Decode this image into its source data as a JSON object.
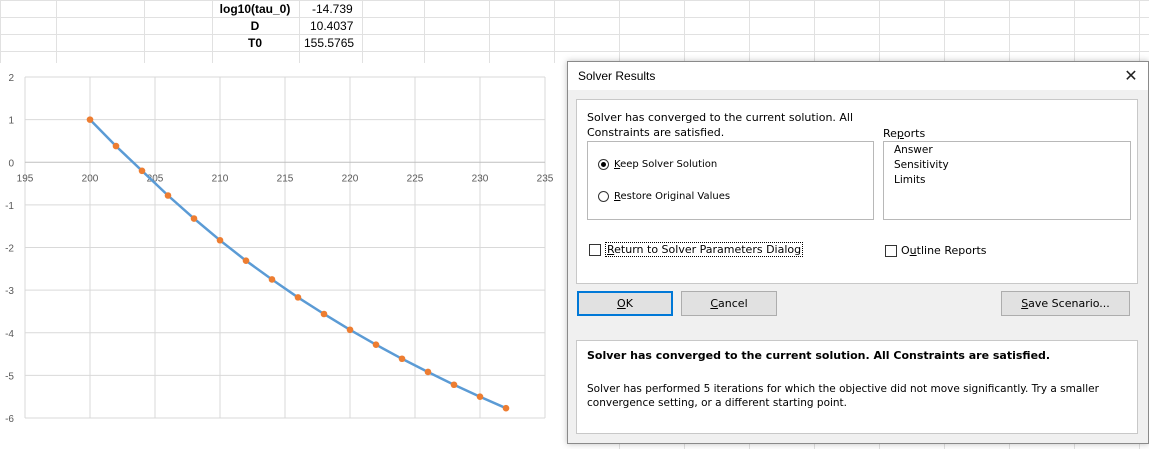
{
  "spreadsheet": {
    "rows": [
      {
        "label": "log10(tau_0)",
        "value": "-14.739"
      },
      {
        "label": "D",
        "value": "10.4037"
      },
      {
        "label": "T0",
        "value": "155.5765"
      }
    ]
  },
  "chart_data": {
    "type": "line",
    "x": [
      200,
      202,
      204,
      206,
      208,
      210,
      212,
      214,
      216,
      218,
      220,
      222,
      224,
      226,
      228,
      230,
      232
    ],
    "y": [
      1.0,
      0.38,
      -0.2,
      -0.78,
      -1.32,
      -1.83,
      -2.31,
      -2.75,
      -3.17,
      -3.56,
      -3.93,
      -4.28,
      -4.61,
      -4.92,
      -5.22,
      -5.5,
      -5.77
    ],
    "xlim": [
      195,
      235
    ],
    "ylim": [
      -6,
      2
    ],
    "x_ticks": [
      "195",
      "200",
      "205",
      "210",
      "215",
      "220",
      "225",
      "230",
      "235"
    ],
    "y_ticks": [
      "2",
      "1",
      "0",
      "-1",
      "-2",
      "-3",
      "-4",
      "-5",
      "-6"
    ],
    "grid": true,
    "line_color": "#5b9bd5",
    "marker_color": "#ed7d31"
  },
  "dialog": {
    "title": "Solver Results",
    "message": "Solver has converged to the current solution.  All Constraints are satisfied.",
    "keep_prefix": "",
    "keep_key": "K",
    "keep_rest": "eep Solver Solution",
    "restore_key": "R",
    "restore_rest": "estore Original Values",
    "reports_label_pre": "Re",
    "reports_label_key": "p",
    "reports_label_post": "orts",
    "reports": [
      "Answer",
      "Sensitivity",
      "Limits"
    ],
    "return_key": "R",
    "return_rest": "eturn to Solver Parameters Dialog",
    "outline_pre": "O",
    "outline_key": "u",
    "outline_post": "tline Reports",
    "ok_key": "O",
    "ok_rest": "K",
    "cancel_key": "C",
    "cancel_rest": "ancel",
    "save_key": "S",
    "save_rest": "ave Scenario...",
    "info_bold": "Solver has converged to the current solution.  All Constraints are satisfied.",
    "info_text": "Solver has performed 5 iterations for which the objective did not move significantly. Try a smaller convergence setting, or a different starting point."
  }
}
